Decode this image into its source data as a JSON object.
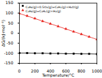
{
  "chart_data": {
    "type": "line",
    "x_label": "Temperature/°C",
    "y_label": "ΔG/(kJ·mol⁻¹)",
    "x": [
      0,
      100,
      200,
      300,
      400,
      500,
      600,
      700,
      800,
      900,
      1000
    ],
    "series": [
      {
        "name": "C₃H₈(g)+0.5O₂(g)=C₃H₆(g)+H₂O(g)",
        "color": "#000000",
        "marker": "square",
        "line_style": "solid",
        "values": [
          -99,
          -99,
          -100,
          -100,
          -101,
          -101,
          -102,
          -102,
          -103,
          -103,
          -104
        ]
      },
      {
        "name": "C₃H₈(g)=C₃H₆(g)+H₂(g)",
        "color": "#e8251f",
        "marker": "triangle",
        "line_style": "solid",
        "values": [
          98,
          86,
          73,
          60,
          47,
          34,
          21,
          8,
          -5,
          -18,
          -31
        ]
      }
    ],
    "xlim": [
      0,
      1000
    ],
    "xticks": [
      0,
      200,
      400,
      600,
      800,
      1000
    ],
    "ylim": [
      -150,
      150
    ],
    "yticks": [
      -150,
      -100,
      -50,
      0,
      50,
      100,
      150
    ],
    "grid": false,
    "legend": "top-left"
  }
}
